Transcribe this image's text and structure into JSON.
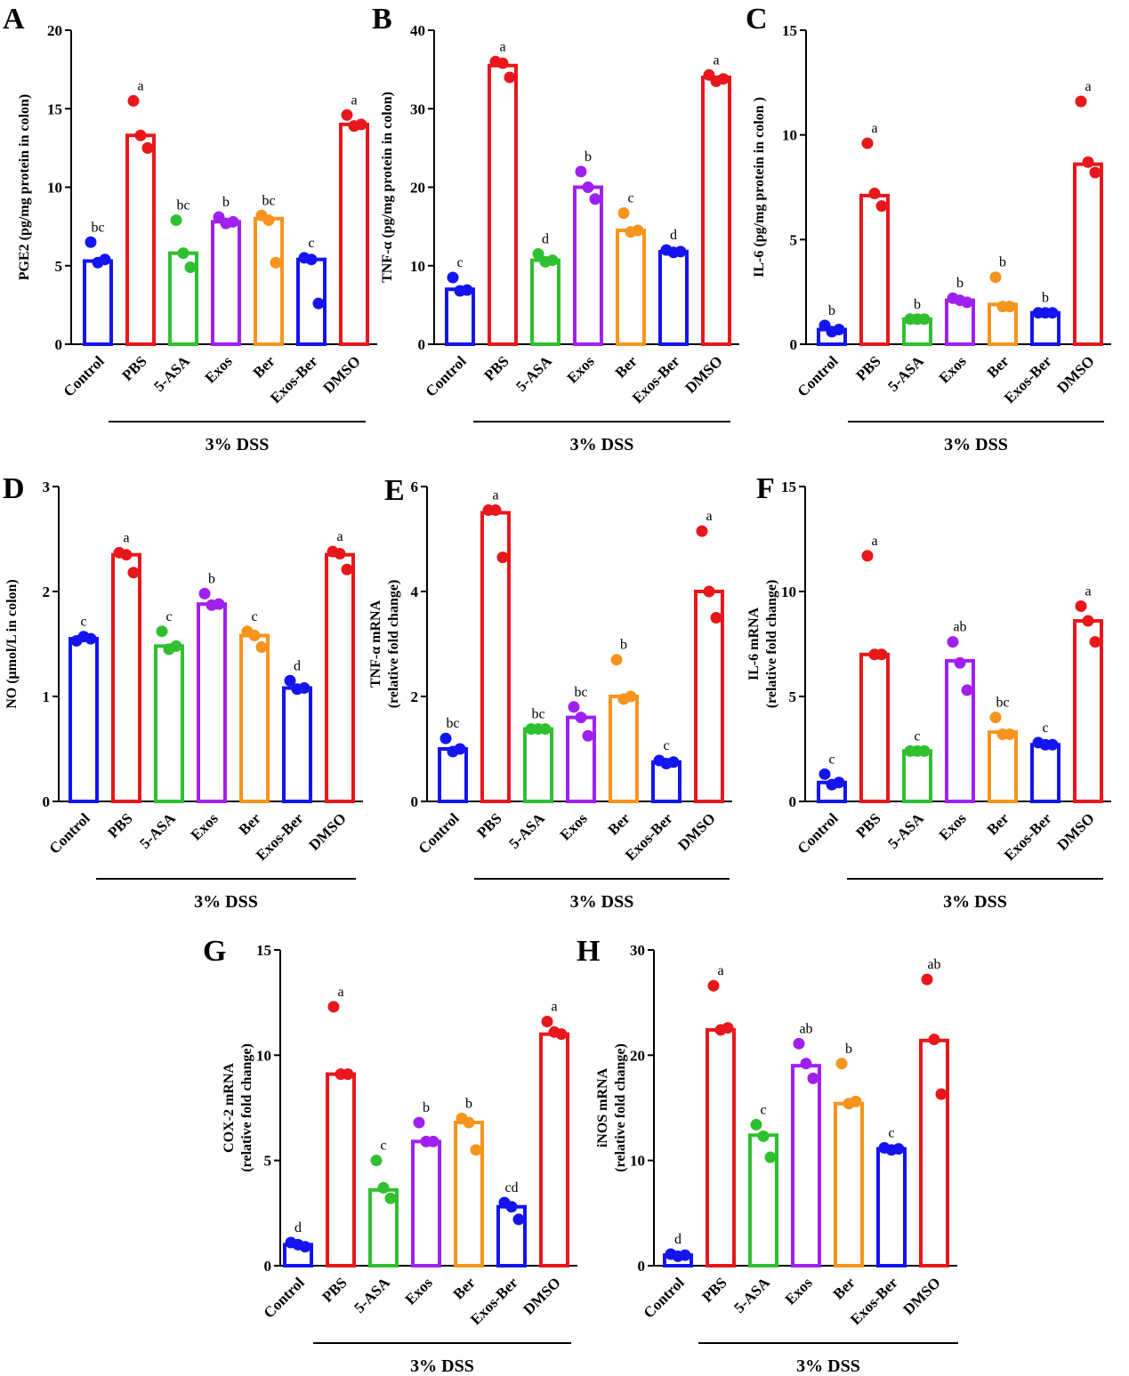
{
  "colors": {
    "Control": "#1414f0",
    "PBS": "#e8171b",
    "5-ASA": "#2fc02f",
    "Exos": "#a020f0",
    "Ber": "#f7941d",
    "Exos-Ber": "#1414f0",
    "DMSO": "#e8171b"
  },
  "chart_data": [
    {
      "panel": "A",
      "type": "bar",
      "ylabel": "PGE2 (pg/mg protein in colon)",
      "ylim": [
        0,
        20
      ],
      "yticks": [
        0,
        5,
        10,
        15,
        20
      ],
      "group_label": "3% DSS",
      "categories": [
        "Control",
        "PBS",
        "5-ASA",
        "Exos",
        "Ber",
        "Exos-Ber",
        "DMSO"
      ],
      "values": [
        5.3,
        13.3,
        5.8,
        7.8,
        8.0,
        5.4,
        14.0
      ],
      "points": [
        [
          6.5,
          5.2,
          5.4
        ],
        [
          15.5,
          13.3,
          12.5
        ],
        [
          7.9,
          5.8,
          4.9
        ],
        [
          8.1,
          7.7,
          7.8
        ],
        [
          8.2,
          7.9,
          5.2
        ],
        [
          5.5,
          5.4,
          2.6
        ],
        [
          14.6,
          13.9,
          14.0
        ]
      ],
      "letters": [
        "bc",
        "a",
        "bc",
        "b",
        "bc",
        "c",
        "a"
      ]
    },
    {
      "panel": "B",
      "type": "bar",
      "ylabel": "TNF-α (pg/mg protein in colon)",
      "ylim": [
        0,
        40
      ],
      "yticks": [
        0,
        10,
        20,
        30,
        40
      ],
      "group_label": "3% DSS",
      "categories": [
        "Control",
        "PBS",
        "5-ASA",
        "Exos",
        "Ber",
        "Exos-Ber",
        "DMSO"
      ],
      "values": [
        7.0,
        35.5,
        10.7,
        20.0,
        14.5,
        11.8,
        34.0
      ],
      "points": [
        [
          8.5,
          6.8,
          6.9
        ],
        [
          36.0,
          35.8,
          34.0
        ],
        [
          11.5,
          10.5,
          10.7
        ],
        [
          22.0,
          20.0,
          18.5
        ],
        [
          16.7,
          14.3,
          14.5
        ],
        [
          12.0,
          11.7,
          11.8
        ],
        [
          34.3,
          33.5,
          33.8
        ]
      ],
      "letters": [
        "c",
        "a",
        "d",
        "b",
        "c",
        "d",
        "a"
      ]
    },
    {
      "panel": "C",
      "type": "bar",
      "ylabel": "IL-6 (pg/mg protein in colon )",
      "ylim": [
        0,
        15
      ],
      "yticks": [
        0,
        5,
        10,
        15
      ],
      "group_label": "3% DSS",
      "categories": [
        "Control",
        "PBS",
        "5-ASA",
        "Exos",
        "Ber",
        "Exos-Ber",
        "DMSO"
      ],
      "values": [
        0.7,
        7.1,
        1.2,
        2.1,
        1.9,
        1.5,
        8.6
      ],
      "points": [
        [
          0.9,
          0.6,
          0.7
        ],
        [
          9.6,
          7.2,
          6.6
        ],
        [
          1.2,
          1.2,
          1.2
        ],
        [
          2.2,
          2.1,
          2.0
        ],
        [
          3.2,
          1.8,
          1.8
        ],
        [
          1.5,
          1.5,
          1.5
        ],
        [
          11.6,
          8.7,
          8.2
        ]
      ],
      "letters": [
        "b",
        "a",
        "b",
        "b",
        "b",
        "b",
        "a"
      ]
    },
    {
      "panel": "D",
      "type": "bar",
      "ylabel": "NO (μmol/L in colon)",
      "ylim": [
        0,
        3
      ],
      "yticks": [
        0,
        1,
        2,
        3
      ],
      "group_label": "3% DSS",
      "categories": [
        "Control",
        "PBS",
        "5-ASA",
        "Exos",
        "Ber",
        "Exos-Ber",
        "DMSO"
      ],
      "values": [
        1.55,
        2.35,
        1.48,
        1.88,
        1.58,
        1.08,
        2.35
      ],
      "points": [
        [
          1.53,
          1.57,
          1.55
        ],
        [
          2.37,
          2.35,
          2.18
        ],
        [
          1.62,
          1.45,
          1.48
        ],
        [
          1.98,
          1.87,
          1.88
        ],
        [
          1.62,
          1.58,
          1.47
        ],
        [
          1.15,
          1.07,
          1.08
        ],
        [
          2.38,
          2.36,
          2.21
        ]
      ],
      "letters": [
        "c",
        "a",
        "c",
        "b",
        "c",
        "d",
        "a"
      ]
    },
    {
      "panel": "E",
      "type": "bar",
      "ylabel": "TNF-α mRNA",
      "ylabel2": "(relative fold change)",
      "ylim": [
        0,
        6
      ],
      "yticks": [
        0,
        2,
        4,
        6
      ],
      "group_label": "3% DSS",
      "categories": [
        "Control",
        "PBS",
        "5-ASA",
        "Exos",
        "Ber",
        "Exos-Ber",
        "DMSO"
      ],
      "values": [
        1.0,
        5.5,
        1.38,
        1.6,
        2.0,
        0.75,
        4.0
      ],
      "points": [
        [
          1.2,
          0.95,
          1.0
        ],
        [
          5.55,
          5.55,
          4.65
        ],
        [
          1.38,
          1.38,
          1.38
        ],
        [
          1.8,
          1.6,
          1.25
        ],
        [
          2.7,
          1.95,
          2.0
        ],
        [
          0.78,
          0.72,
          0.75
        ],
        [
          5.15,
          4.0,
          3.5
        ]
      ],
      "letters": [
        "bc",
        "a",
        "bc",
        "bc",
        "b",
        "c",
        "a"
      ]
    },
    {
      "panel": "F",
      "type": "bar",
      "ylabel": "IL-6 mRNA",
      "ylabel2": "(relative fold change)",
      "ylim": [
        0,
        15
      ],
      "yticks": [
        0,
        5,
        10,
        15
      ],
      "group_label": "3% DSS",
      "categories": [
        "Control",
        "PBS",
        "5-ASA",
        "Exos",
        "Ber",
        "Exos-Ber",
        "DMSO"
      ],
      "values": [
        0.9,
        7.0,
        2.4,
        6.7,
        3.3,
        2.7,
        8.6
      ],
      "points": [
        [
          1.3,
          0.8,
          0.9
        ],
        [
          11.7,
          7.0,
          7.0
        ],
        [
          2.4,
          2.4,
          2.4
        ],
        [
          7.6,
          6.6,
          5.3
        ],
        [
          4.0,
          3.2,
          3.2
        ],
        [
          2.8,
          2.7,
          2.7
        ],
        [
          9.3,
          8.6,
          7.6
        ]
      ],
      "letters": [
        "c",
        "a",
        "c",
        "ab",
        "bc",
        "c",
        "a"
      ]
    },
    {
      "panel": "G",
      "type": "bar",
      "ylabel": "COX-2 mRNA",
      "ylabel2": "(relative fold change)",
      "ylim": [
        0,
        15
      ],
      "yticks": [
        0,
        5,
        10,
        15
      ],
      "group_label": "3% DSS",
      "categories": [
        "Control",
        "PBS",
        "5-ASA",
        "Exos",
        "Ber",
        "Exos-Ber",
        "DMSO"
      ],
      "values": [
        1.0,
        9.1,
        3.6,
        5.9,
        6.8,
        2.8,
        11.0
      ],
      "points": [
        [
          1.1,
          1.0,
          0.9
        ],
        [
          12.3,
          9.1,
          9.1
        ],
        [
          5.0,
          3.7,
          3.2
        ],
        [
          6.8,
          5.9,
          5.9
        ],
        [
          7.0,
          6.8,
          5.5
        ],
        [
          3.0,
          2.8,
          2.2
        ],
        [
          11.6,
          11.1,
          11.0
        ]
      ],
      "letters": [
        "d",
        "a",
        "c",
        "b",
        "b",
        "cd",
        "a"
      ]
    },
    {
      "panel": "H",
      "type": "bar",
      "ylabel": "iNOS mRNA",
      "ylabel2": "(relative fold change)",
      "ylim": [
        0,
        30
      ],
      "yticks": [
        0,
        10,
        20,
        30
      ],
      "group_label": "3% DSS",
      "categories": [
        "Control",
        "PBS",
        "5-ASA",
        "Exos",
        "Ber",
        "Exos-Ber",
        "DMSO"
      ],
      "values": [
        1.0,
        22.4,
        12.4,
        19.0,
        15.4,
        11.1,
        21.4
      ],
      "points": [
        [
          1.1,
          0.9,
          1.0
        ],
        [
          26.6,
          22.4,
          22.6
        ],
        [
          13.4,
          12.3,
          10.3
        ],
        [
          21.1,
          19.2,
          17.8
        ],
        [
          19.2,
          15.4,
          15.6
        ],
        [
          11.2,
          11.0,
          11.1
        ],
        [
          27.2,
          21.5,
          16.3
        ]
      ],
      "letters": [
        "d",
        "a",
        "c",
        "ab",
        "b",
        "c",
        "ab"
      ]
    }
  ]
}
